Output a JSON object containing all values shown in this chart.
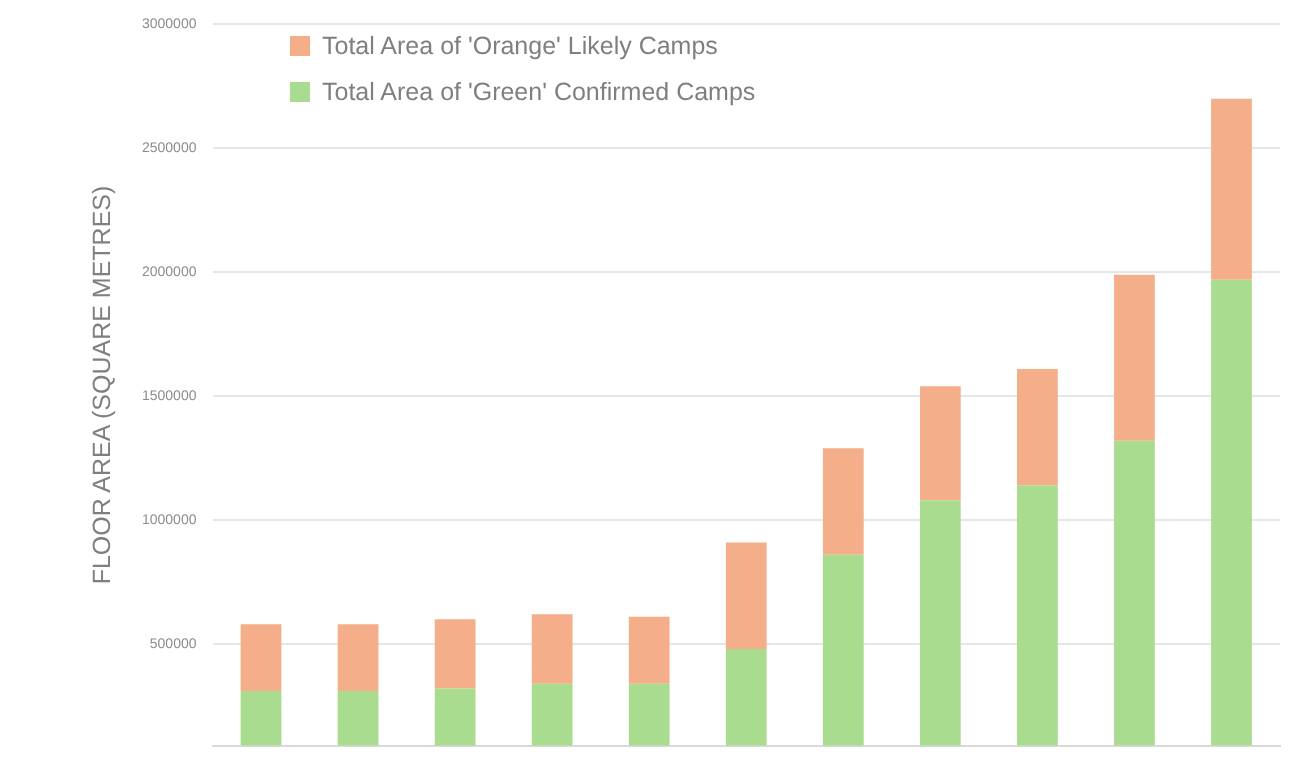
{
  "chart_data": {
    "type": "bar",
    "stacked": true,
    "ylabel": "FLOOR AREA (SQUARE METRES)",
    "categories": [
      null,
      null,
      null,
      null,
      null,
      null,
      null,
      null,
      null,
      null,
      null
    ],
    "series": [
      {
        "name": "Total Area of 'Green' Confirmed Camps",
        "color": "#a9dc8e",
        "values": [
          310000,
          310000,
          320000,
          340000,
          340000,
          480000,
          860000,
          1080000,
          1140000,
          1320000,
          1970000
        ]
      },
      {
        "name": "Total Area of 'Orange' Likely Camps",
        "color": "#f5ae8a",
        "values": [
          270000,
          270000,
          280000,
          280000,
          270000,
          430000,
          430000,
          460000,
          470000,
          670000,
          730000
        ]
      }
    ],
    "ylim": [
      90000,
      3000000
    ],
    "yticks": [
      500000,
      1000000,
      1500000,
      2000000,
      2500000,
      3000000
    ],
    "grid": "y",
    "legend": "top left"
  }
}
